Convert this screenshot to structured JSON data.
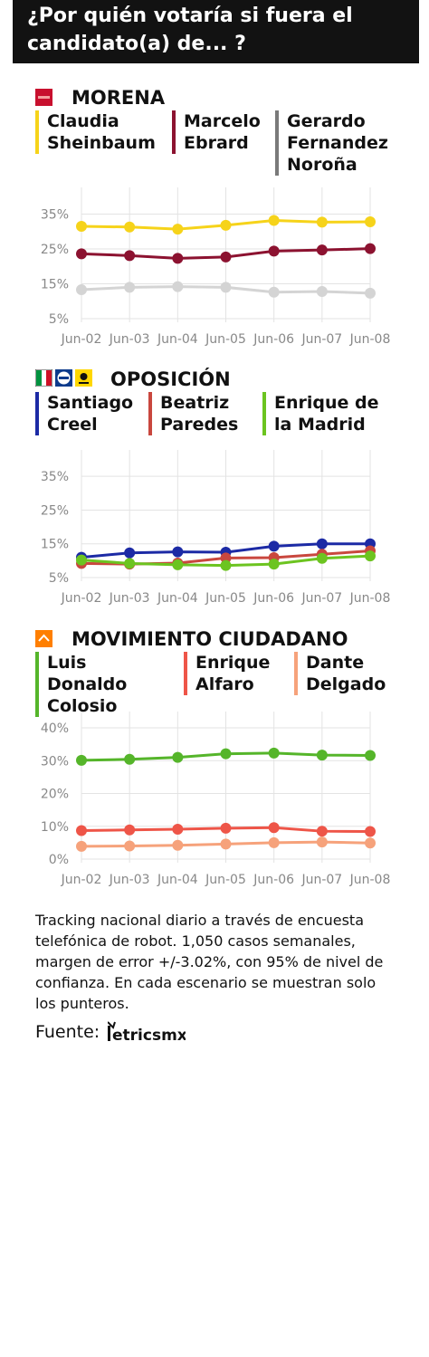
{
  "header": {
    "line1": "¿Por quién votaría si fuera el",
    "line2": "candidato(a) de... ?"
  },
  "sections": [
    {
      "title": "MORENA",
      "logos": [
        "morena-logo"
      ],
      "candidates": [
        {
          "name": "Claudia\nSheinbaum",
          "color": "#f6d31a"
        },
        {
          "name": "Marcelo\nEbrard",
          "color": "#8c1230"
        },
        {
          "name": "Gerardo\nFernandez\nNoroña",
          "color": "#7a7a7a"
        }
      ]
    },
    {
      "title": "OPOSICIÓN",
      "logos": [
        "pri-logo",
        "pan-logo",
        "prd-logo"
      ],
      "candidates": [
        {
          "name": "Santiago\nCreel",
          "color": "#1c2aa5"
        },
        {
          "name": "Beatriz\nParedes",
          "color": "#c9473e"
        },
        {
          "name": "Enrique de\nla Madrid",
          "color": "#6cc420"
        }
      ]
    },
    {
      "title": "MOVIMIENTO CIUDADANO",
      "logos": [
        "mc-logo"
      ],
      "candidates": [
        {
          "name": "Luis\nDonaldo\nColosio",
          "color": "#55b52a"
        },
        {
          "name": "Enrique\nAlfaro",
          "color": "#ee5548"
        },
        {
          "name": "Dante\nDelgado",
          "color": "#f6a27b"
        }
      ]
    }
  ],
  "chart_data": [
    {
      "type": "line",
      "title": "",
      "x": [
        "Jun-02",
        "Jun-03",
        "Jun-04",
        "Jun-05",
        "Jun-06",
        "Jun-07",
        "Jun-08"
      ],
      "yticks": [
        "5%",
        "15%",
        "25%",
        "35%"
      ],
      "ylim": [
        5,
        38
      ],
      "grid": true,
      "series": [
        {
          "name": "Claudia Sheinbaum",
          "color": "#f6d31a",
          "values": [
            31.5,
            31.3,
            30.7,
            31.8,
            33.2,
            32.7,
            32.8
          ]
        },
        {
          "name": "Marcelo Ebrard",
          "color": "#8c1230",
          "values": [
            23.6,
            23.1,
            22.3,
            22.7,
            24.4,
            24.7,
            25.1
          ]
        },
        {
          "name": "Gerardo Fernandez Noroña",
          "color": "#d4d4d4",
          "values": [
            13.3,
            14.0,
            14.2,
            14.0,
            12.6,
            12.8,
            12.3
          ]
        }
      ]
    },
    {
      "type": "line",
      "title": "",
      "x": [
        "Jun-02",
        "Jun-03",
        "Jun-04",
        "Jun-05",
        "Jun-06",
        "Jun-07",
        "Jun-08"
      ],
      "yticks": [
        "5%",
        "15%",
        "25%",
        "35%"
      ],
      "ylim": [
        5,
        38
      ],
      "grid": true,
      "series": [
        {
          "name": "Santiago Creel",
          "color": "#1c2aa5",
          "values": [
            11.0,
            12.3,
            12.6,
            12.5,
            14.3,
            15.0,
            15.0
          ]
        },
        {
          "name": "Beatriz Paredes",
          "color": "#c9473e",
          "values": [
            9.2,
            9.0,
            9.3,
            10.8,
            10.9,
            11.9,
            12.9
          ]
        },
        {
          "name": "Enrique de la Madrid",
          "color": "#6cc420",
          "values": [
            10.2,
            9.2,
            8.8,
            8.6,
            9.0,
            10.7,
            11.4
          ]
        }
      ]
    },
    {
      "type": "line",
      "title": "",
      "x": [
        "Jun-02",
        "Jun-03",
        "Jun-04",
        "Jun-05",
        "Jun-06",
        "Jun-07",
        "Jun-08"
      ],
      "yticks": [
        "0%",
        "10%",
        "20%",
        "30%",
        "40%"
      ],
      "ylim": [
        0,
        40
      ],
      "grid": true,
      "series": [
        {
          "name": "Luis Donaldo Colosio",
          "color": "#55b52a",
          "values": [
            30.1,
            30.4,
            31.0,
            32.1,
            32.3,
            31.7,
            31.6
          ]
        },
        {
          "name": "Enrique Alfaro",
          "color": "#ee5548",
          "values": [
            8.7,
            8.9,
            9.1,
            9.4,
            9.6,
            8.5,
            8.4
          ]
        },
        {
          "name": "Dante Delgado",
          "color": "#f6a27b",
          "values": [
            3.9,
            4.0,
            4.2,
            4.6,
            5.0,
            5.2,
            4.9
          ]
        }
      ]
    }
  ],
  "note": "Tracking nacional diario a través de encuesta telefónica de robot. 1,050 casos semanales, margen de error +/-3.02%, con 95% de nivel de confianza. En cada escenario se muestran solo los punteros.",
  "source_label": "Fuente:",
  "source_logo": "MetricsMx-logo"
}
